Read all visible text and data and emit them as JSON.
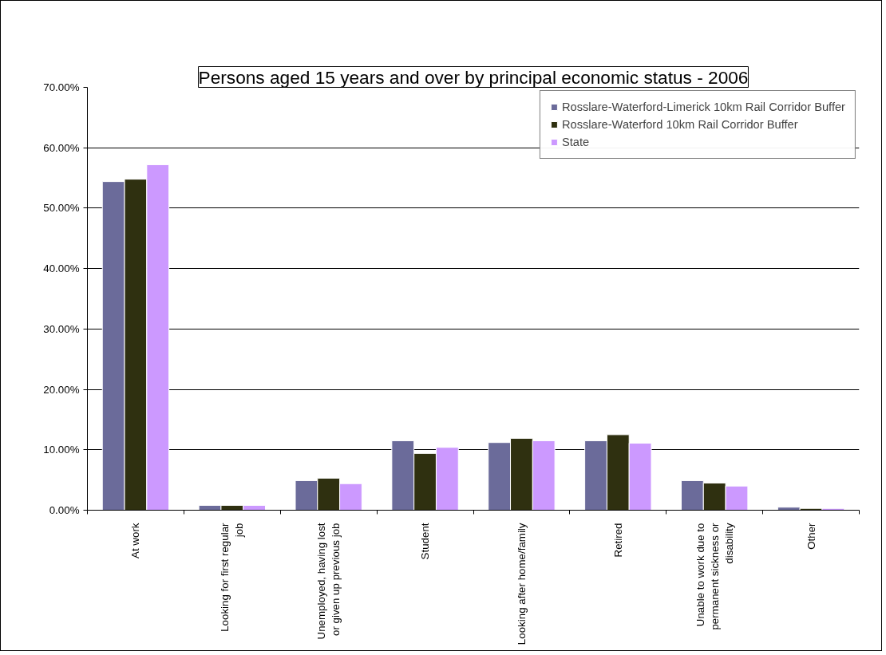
{
  "chart_data": {
    "type": "bar",
    "title": "Persons aged 15 years and over by principal economic status - 2006",
    "categories": [
      "At work",
      "Looking for first regular job",
      "Unemployed, having lost or given up previous job",
      "Student",
      "Looking after home/family",
      "Retired",
      "Unable to work due to permanent sickness or disability",
      "Other"
    ],
    "series": [
      {
        "name": "Rosslare-Waterford-Limerick 10km Rail Corridor Buffer",
        "color": "#6b6b9a",
        "values": [
          54.4,
          0.8,
          4.9,
          11.5,
          11.2,
          11.5,
          4.9,
          0.5
        ]
      },
      {
        "name": "Rosslare-Waterford 10km Rail Corridor Buffer",
        "color": "#2f3010",
        "values": [
          54.8,
          0.8,
          5.3,
          9.4,
          11.9,
          12.5,
          4.5,
          0.3
        ]
      },
      {
        "name": "State",
        "color": "#cc99ff",
        "values": [
          57.2,
          0.8,
          4.4,
          10.4,
          11.5,
          11.1,
          4.0,
          0.3
        ]
      }
    ],
    "ylim": [
      0,
      70
    ],
    "yticks": [
      {
        "value": 0,
        "label": "0.00%"
      },
      {
        "value": 10,
        "label": "10.00%"
      },
      {
        "value": 20,
        "label": "20.00%"
      },
      {
        "value": 30,
        "label": "30.00%"
      },
      {
        "value": 40,
        "label": "40.00%"
      },
      {
        "value": 50,
        "label": "50.00%"
      },
      {
        "value": 60,
        "label": "60.00%"
      },
      {
        "value": 70,
        "label": "70.00%"
      }
    ],
    "grid": "y",
    "legend": "top right"
  }
}
